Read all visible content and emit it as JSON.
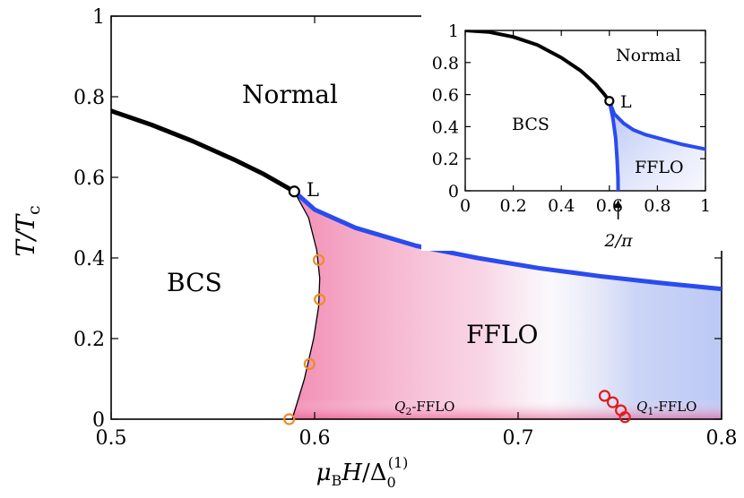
{
  "chart_data": [
    {
      "type": "line",
      "panel": "main",
      "xlabel": "μB H / Δ0(1)",
      "ylabel": "T / Tc",
      "xlim": [
        0.5,
        0.8
      ],
      "ylim": [
        0,
        1
      ],
      "xticks": [
        "0.5",
        "0.6",
        "0.7",
        "0.8"
      ],
      "yticks": [
        "0",
        "0.2",
        "0.4",
        "0.6",
        "0.8",
        "1"
      ],
      "regions": {
        "normal": "Normal",
        "bcs": "BCS",
        "fflo": "FFLO",
        "q2": "Q2-FFLO",
        "q1": "Q1-FFLO"
      },
      "lifshitz_label": "L",
      "lifshitz_point": {
        "x": 0.59,
        "y": 0.565
      },
      "series": [
        {
          "name": "BCS-Normal (first order)",
          "color": "#000000",
          "x": [
            0.5,
            0.52,
            0.54,
            0.56,
            0.575,
            0.59
          ],
          "y": [
            0.765,
            0.73,
            0.69,
            0.645,
            0.608,
            0.565
          ]
        },
        {
          "name": "FFLO-Normal",
          "color": "#2a4bef",
          "x": [
            0.59,
            0.6,
            0.62,
            0.65,
            0.68,
            0.71,
            0.74,
            0.77,
            0.8
          ],
          "y": [
            0.565,
            0.52,
            0.475,
            0.43,
            0.4,
            0.375,
            0.355,
            0.338,
            0.323
          ]
        },
        {
          "name": "BCS-FFLO boundary",
          "color": "#000000",
          "x": [
            0.59,
            0.597,
            0.601,
            0.6025,
            0.602,
            0.5995,
            0.595,
            0.589
          ],
          "y": [
            0.565,
            0.5,
            0.42,
            0.35,
            0.28,
            0.2,
            0.1,
            0.0
          ]
        }
      ],
      "markers": [
        {
          "name": "orange",
          "color": "#f08a2c",
          "x": [
            0.602,
            0.6025,
            0.5975,
            0.5875
          ],
          "y": [
            0.395,
            0.297,
            0.137,
            0.0
          ]
        },
        {
          "name": "red",
          "color": "#e31b1b",
          "x": [
            0.7425,
            0.7465,
            0.7505,
            0.7525
          ],
          "y": [
            0.058,
            0.042,
            0.022,
            0.005
          ]
        }
      ]
    },
    {
      "type": "line",
      "panel": "inset",
      "xlim": [
        0,
        1
      ],
      "ylim": [
        0,
        1
      ],
      "xticks": [
        "0",
        "0.2",
        "0.4",
        "0.6",
        "0.8",
        "1"
      ],
      "yticks": [
        "0",
        "0.2",
        "0.4",
        "0.6",
        "0.8",
        "1"
      ],
      "regions": {
        "normal": "Normal",
        "bcs": "BCS",
        "fflo": "FFLO"
      },
      "lifshitz_label": "L",
      "lifshitz_point": {
        "x": 0.6,
        "y": 0.56
      },
      "annotation": "2/π",
      "annotation_x": 0.6366,
      "series": [
        {
          "name": "BCS-Normal",
          "color": "#000000",
          "x": [
            0,
            0.1,
            0.2,
            0.3,
            0.4,
            0.48,
            0.54,
            0.58,
            0.6
          ],
          "y": [
            1.0,
            0.99,
            0.96,
            0.91,
            0.83,
            0.75,
            0.67,
            0.6,
            0.56
          ]
        },
        {
          "name": "FFLO-Normal",
          "color": "#2a4bef",
          "x": [
            0.6,
            0.62,
            0.66,
            0.7,
            0.75,
            0.8,
            0.85,
            0.9,
            0.95,
            1.0
          ],
          "y": [
            0.56,
            0.48,
            0.42,
            0.38,
            0.35,
            0.33,
            0.31,
            0.29,
            0.275,
            0.26
          ]
        },
        {
          "name": "BCS-FFLO",
          "color": "#2a4bef",
          "x": [
            0.6,
            0.615,
            0.626,
            0.632,
            0.636,
            0.6366
          ],
          "y": [
            0.56,
            0.45,
            0.33,
            0.2,
            0.08,
            0.0
          ]
        }
      ]
    }
  ]
}
